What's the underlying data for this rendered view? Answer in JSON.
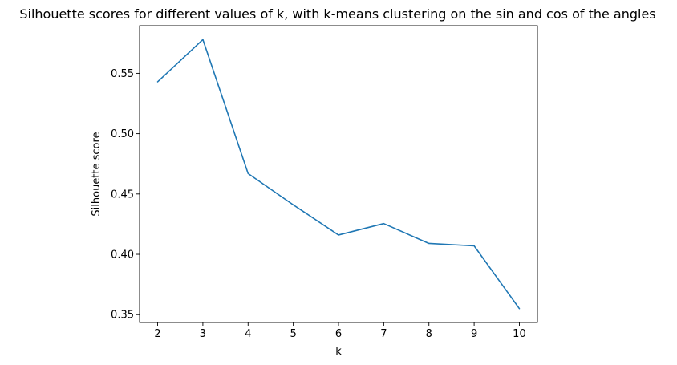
{
  "chart_data": {
    "type": "line",
    "title": "Silhouette scores for different values of k, with k-means clustering on the sin and cos of the angles",
    "xlabel": "k",
    "ylabel": "Silhouette score",
    "x": [
      2,
      3,
      4,
      5,
      6,
      7,
      8,
      9,
      10
    ],
    "xticks": [
      "2",
      "3",
      "4",
      "5",
      "6",
      "7",
      "8",
      "9",
      "10"
    ],
    "yticks": [
      "0.35",
      "0.40",
      "0.45",
      "0.50",
      "0.55"
    ],
    "ytick_values": [
      0.35,
      0.4,
      0.45,
      0.5,
      0.55
    ],
    "xlim": [
      1.6,
      10.4
    ],
    "ylim": [
      0.3435,
      0.5895
    ],
    "grid": false,
    "series": [
      {
        "color": "#1f77b4",
        "values": [
          0.543,
          0.578,
          0.467,
          0.441,
          0.416,
          0.4255,
          0.409,
          0.407,
          0.355
        ]
      }
    ]
  }
}
